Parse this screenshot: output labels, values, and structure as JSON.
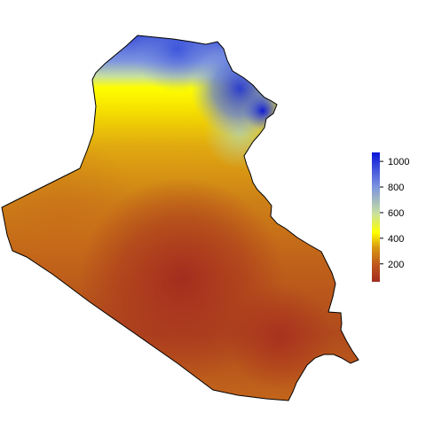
{
  "map": {
    "title": "",
    "legend": {
      "type": "continuous-colorbar",
      "placement": "right",
      "min": 60,
      "max": 1070,
      "ticks": [
        {
          "value": 200,
          "label": "200"
        },
        {
          "value": 400,
          "label": "400"
        },
        {
          "value": 600,
          "label": "600"
        },
        {
          "value": 800,
          "label": "800"
        },
        {
          "value": 1000,
          "label": "1000"
        }
      ],
      "color_stops": [
        {
          "value": 60,
          "color": "#a32a1f"
        },
        {
          "value": 200,
          "color": "#c05a1c"
        },
        {
          "value": 330,
          "color": "#d99a10"
        },
        {
          "value": 450,
          "color": "#ffff00"
        },
        {
          "value": 600,
          "color": "#c8e0a0"
        },
        {
          "value": 800,
          "color": "#7f96e0"
        },
        {
          "value": 1070,
          "color": "#0a14d8"
        }
      ]
    },
    "colors": {
      "low": "#a32a1f",
      "mid": "#ffff00",
      "high": "#0a14d8",
      "border": "#000000"
    }
  }
}
